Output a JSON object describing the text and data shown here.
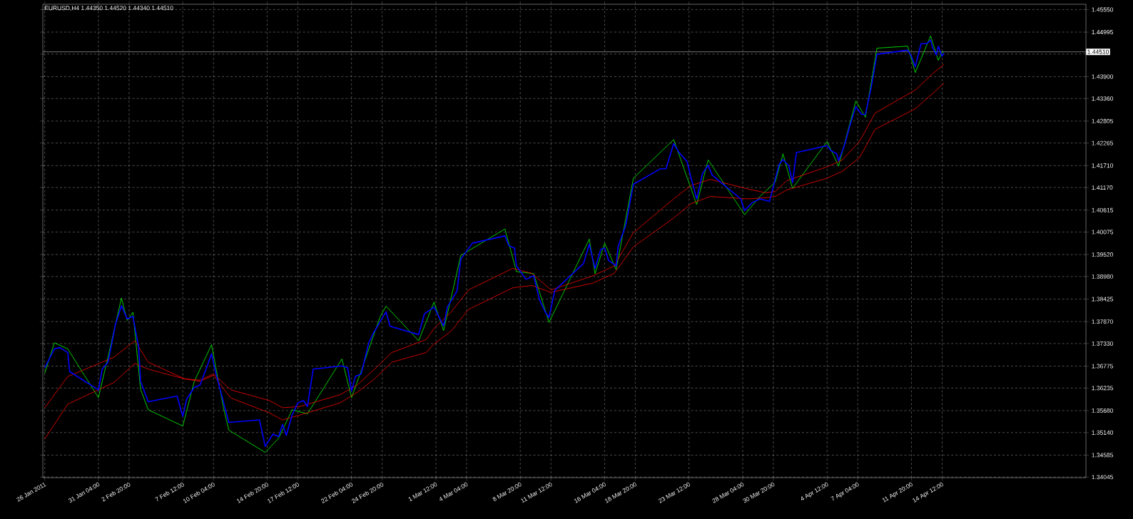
{
  "chart_data": {
    "type": "line",
    "title": "EURUSD,H4  1.44350 1.44520 1.44340 1.44510",
    "xlim": [
      "2011-01-26T08:00",
      "2011-04-27T00:00"
    ],
    "ylim": [
      1.3403,
      1.4568
    ],
    "xticks": [
      {
        "value": "2011-01-26T12:00",
        "label": "26 Jan 2011"
      },
      {
        "value": "2011-01-31T04:00",
        "label": "31 Jan 04:00"
      },
      {
        "value": "2011-02-02T20:00",
        "label": "2 Feb 20:00"
      },
      {
        "value": "2011-02-07T12:00",
        "label": "7 Feb 12:00"
      },
      {
        "value": "2011-02-10T04:00",
        "label": "10 Feb 04:00"
      },
      {
        "value": "2011-02-14T20:00",
        "label": "14 Feb 20:00"
      },
      {
        "value": "2011-02-17T12:00",
        "label": "17 Feb 12:00"
      },
      {
        "value": "2011-02-22T04:00",
        "label": "22 Feb 04:00"
      },
      {
        "value": "2011-02-24T20:00",
        "label": "24 Feb 20:00"
      },
      {
        "value": "2011-03-01T12:00",
        "label": "1 Mar 12:00"
      },
      {
        "value": "2011-03-04T04:00",
        "label": "4 Mar 04:00"
      },
      {
        "value": "2011-03-08T20:00",
        "label": "8 Mar 20:00"
      },
      {
        "value": "2011-03-11T12:00",
        "label": "11 Mar 12:00"
      },
      {
        "value": "2011-03-16T04:00",
        "label": "16 Mar 04:00"
      },
      {
        "value": "2011-03-18T20:00",
        "label": "18 Mar 20:00"
      },
      {
        "value": "2011-03-23T12:00",
        "label": "23 Mar 12:00"
      },
      {
        "value": "2011-03-28T04:00",
        "label": "28 Mar 04:00"
      },
      {
        "value": "2011-03-30T20:00",
        "label": "30 Mar 20:00"
      },
      {
        "value": "2011-04-04T12:00",
        "label": "4 Apr 12:00"
      },
      {
        "value": "2011-04-07T04:00",
        "label": "7 Apr 04:00"
      },
      {
        "value": "2011-04-11T20:00",
        "label": "11 Apr 20:00"
      },
      {
        "value": "2011-04-14T12:00",
        "label": "14 Apr 12:00"
      }
    ],
    "yticks": [
      {
        "value": 1.34045,
        "label": "1.34045"
      },
      {
        "value": 1.34585,
        "label": "1.34585"
      },
      {
        "value": 1.3514,
        "label": "1.35140"
      },
      {
        "value": 1.3568,
        "label": "1.35680"
      },
      {
        "value": 1.36235,
        "label": "1.36235"
      },
      {
        "value": 1.36775,
        "label": "1.36775"
      },
      {
        "value": 1.3733,
        "label": "1.37330"
      },
      {
        "value": 1.3787,
        "label": "1.37870"
      },
      {
        "value": 1.38425,
        "label": "1.38425"
      },
      {
        "value": 1.3898,
        "label": "1.38980"
      },
      {
        "value": 1.3952,
        "label": "1.39520"
      },
      {
        "value": 1.40075,
        "label": "1.40075"
      },
      {
        "value": 1.40615,
        "label": "1.40615"
      },
      {
        "value": 1.4117,
        "label": "1.41170"
      },
      {
        "value": 1.4171,
        "label": "1.41710"
      },
      {
        "value": 1.42265,
        "label": "1.42265"
      },
      {
        "value": 1.42805,
        "label": "1.42805"
      },
      {
        "value": 1.4336,
        "label": "1.43360"
      },
      {
        "value": 1.439,
        "label": "1.43900"
      },
      {
        "value": 1.44455,
        "label": null
      },
      {
        "value": 1.44995,
        "label": "1.44995"
      },
      {
        "value": 1.4555,
        "label": "1.45550"
      }
    ],
    "grid": true,
    "ref_lines": [
      {
        "axis": "y",
        "value": 1.4451,
        "label": "1.44510",
        "color": "#c0c0c0"
      }
    ],
    "series": [
      {
        "color": "#00ff00",
        "x": [
          "2011-01-26T12:00",
          "2011-01-27T08:00",
          "2011-01-28T12:00",
          "2011-01-31T04:00",
          "2011-02-01T00:00",
          "2011-02-02T04:00",
          "2011-02-02T16:00",
          "2011-02-03T04:00",
          "2011-02-03T20:00",
          "2011-02-04T12:00",
          "2011-02-07T12:00",
          "2011-02-08T12:00",
          "2011-02-10T00:00",
          "2011-02-11T00:00",
          "2011-02-11T12:00",
          "2011-02-14T16:00",
          "2011-02-15T20:00",
          "2011-02-17T00:00",
          "2011-02-18T08:00",
          "2011-02-21T08:00",
          "2011-02-22T04:00",
          "2011-02-23T00:00",
          "2011-02-24T16:00",
          "2011-02-25T04:00",
          "2011-02-28T00:00",
          "2011-03-01T08:00",
          "2011-03-02T04:00",
          "2011-03-03T16:00",
          "2011-03-07T12:00",
          "2011-03-08T12:00",
          "2011-03-10T00:00",
          "2011-03-11T08:00",
          "2011-03-14T20:00",
          "2011-03-15T08:00",
          "2011-03-16T04:00",
          "2011-03-17T04:00",
          "2011-03-18T16:00",
          "2011-03-22T04:00",
          "2011-03-24T04:00",
          "2011-03-25T04:00",
          "2011-03-28T08:00",
          "2011-03-29T16:00",
          "2011-03-31T00:00",
          "2011-03-31T16:00",
          "2011-04-01T12:00",
          "2011-04-04T12:00",
          "2011-04-05T12:00",
          "2011-04-07T00:00",
          "2011-04-07T20:00",
          "2011-04-08T20:00",
          "2011-04-11T12:00",
          "2011-04-12T04:00",
          "2011-04-13T12:00",
          "2011-04-14T04:00",
          "2011-04-14T12:00",
          "2011-04-14T16:00"
        ],
        "values": [
          1.366,
          1.3735,
          1.372,
          1.36,
          1.37,
          1.3845,
          1.379,
          1.381,
          1.362,
          1.357,
          1.353,
          1.364,
          1.373,
          1.358,
          1.352,
          1.3465,
          1.35,
          1.357,
          1.356,
          1.3695,
          1.36,
          1.3665,
          1.38,
          1.3825,
          1.374,
          1.3835,
          1.3765,
          1.395,
          1.4015,
          1.391,
          1.3905,
          1.3785,
          1.399,
          1.3905,
          1.398,
          1.3915,
          1.414,
          1.4235,
          1.4075,
          1.4185,
          1.405,
          1.4095,
          1.413,
          1.42,
          1.4115,
          1.423,
          1.417,
          1.433,
          1.429,
          1.446,
          1.4465,
          1.44,
          1.449,
          1.443,
          1.445,
          1.4451
        ]
      },
      {
        "color": "#ff0000",
        "x": [
          "2011-01-26T12:00",
          "2011-01-28T12:00",
          "2011-02-01T12:00",
          "2011-02-03T08:00",
          "2011-02-04T12:00",
          "2011-02-07T16:00",
          "2011-02-09T00:00",
          "2011-02-10T04:00",
          "2011-02-11T16:00",
          "2011-02-15T00:00",
          "2011-02-16T04:00",
          "2011-02-17T16:00",
          "2011-02-21T04:00",
          "2011-02-22T16:00",
          "2011-02-24T04:00",
          "2011-02-25T16:00",
          "2011-02-28T16:00",
          "2011-03-01T08:00",
          "2011-03-02T20:00",
          "2011-03-04T08:00",
          "2011-03-08T04:00",
          "2011-03-09T20:00",
          "2011-03-11T12:00",
          "2011-03-15T04:00",
          "2011-03-17T00:00",
          "2011-03-18T16:00",
          "2011-03-22T04:00",
          "2011-03-23T16:00",
          "2011-03-25T08:00",
          "2011-03-28T16:00",
          "2011-03-30T04:00",
          "2011-03-31T00:00",
          "2011-04-01T00:00",
          "2011-04-04T12:00",
          "2011-04-05T20:00",
          "2011-04-07T08:00",
          "2011-04-08T16:00",
          "2011-04-12T04:00",
          "2011-04-13T16:00",
          "2011-04-14T16:00"
        ],
        "values": [
          1.3575,
          1.3652,
          1.3699,
          1.374,
          1.3687,
          1.3646,
          1.3643,
          1.3658,
          1.3619,
          1.3593,
          1.3575,
          1.3578,
          1.3607,
          1.3631,
          1.367,
          1.3711,
          1.3743,
          1.377,
          1.3811,
          1.3865,
          1.3918,
          1.3906,
          1.3865,
          1.39,
          1.3924,
          1.4006,
          1.4089,
          1.4122,
          1.4137,
          1.4113,
          1.4104,
          1.4107,
          1.4134,
          1.4168,
          1.4185,
          1.4231,
          1.43,
          1.4357,
          1.4397,
          1.442
        ]
      },
      {
        "color": "#ff0000",
        "x": [
          "2011-01-26T12:00",
          "2011-01-28T12:00",
          "2011-02-01T12:00",
          "2011-02-03T08:00",
          "2011-02-04T12:00",
          "2011-02-07T16:00",
          "2011-02-09T00:00",
          "2011-02-10T04:00",
          "2011-02-11T16:00",
          "2011-02-15T00:00",
          "2011-02-16T04:00",
          "2011-02-17T16:00",
          "2011-02-21T04:00",
          "2011-02-22T16:00",
          "2011-02-24T04:00",
          "2011-02-25T16:00",
          "2011-02-28T16:00",
          "2011-03-01T08:00",
          "2011-03-02T20:00",
          "2011-03-04T08:00",
          "2011-03-08T04:00",
          "2011-03-09T20:00",
          "2011-03-11T12:00",
          "2011-03-15T04:00",
          "2011-03-17T00:00",
          "2011-03-18T16:00",
          "2011-03-22T04:00",
          "2011-03-23T16:00",
          "2011-03-25T08:00",
          "2011-03-28T16:00",
          "2011-03-30T04:00",
          "2011-03-31T00:00",
          "2011-04-01T00:00",
          "2011-04-04T12:00",
          "2011-04-05T20:00",
          "2011-04-07T08:00",
          "2011-04-08T16:00",
          "2011-04-12T04:00",
          "2011-04-13T16:00",
          "2011-04-14T16:00"
        ],
        "values": [
          1.3498,
          1.3584,
          1.3637,
          1.3684,
          1.367,
          1.3646,
          1.364,
          1.3655,
          1.3599,
          1.3563,
          1.3545,
          1.3557,
          1.3587,
          1.3613,
          1.3646,
          1.3687,
          1.3711,
          1.3732,
          1.3764,
          1.3817,
          1.387,
          1.3876,
          1.3859,
          1.3882,
          1.3906,
          1.3971,
          1.4042,
          1.4077,
          1.4095,
          1.4089,
          1.4092,
          1.4095,
          1.4111,
          1.414,
          1.4157,
          1.4191,
          1.426,
          1.4311,
          1.4348,
          1.4374
        ]
      },
      {
        "color": "#0000ff",
        "x": [
          "2011-01-26T12:00",
          "2011-01-27T08:00",
          "2011-01-27T20:00",
          "2011-01-28T12:00",
          "2011-01-28T16:00",
          "2011-01-31T04:00",
          "2011-01-31T12:00",
          "2011-02-01T00:00",
          "2011-02-01T16:00",
          "2011-02-02T04:00",
          "2011-02-02T16:00",
          "2011-02-03T04:00",
          "2011-02-03T16:00",
          "2011-02-03T20:00",
          "2011-02-04T12:00",
          "2011-02-07T00:00",
          "2011-02-07T12:00",
          "2011-02-07T20:00",
          "2011-02-08T12:00",
          "2011-02-09T00:00",
          "2011-02-09T16:00",
          "2011-02-10T00:00",
          "2011-02-10T08:00",
          "2011-02-11T00:00",
          "2011-02-11T12:00",
          "2011-02-14T04:00",
          "2011-02-14T16:00",
          "2011-02-15T08:00",
          "2011-02-15T20:00",
          "2011-02-16T04:00",
          "2011-02-16T12:00",
          "2011-02-17T00:00",
          "2011-02-17T12:00",
          "2011-02-18T00:00",
          "2011-02-18T08:00",
          "2011-02-18T20:00",
          "2011-02-21T08:00",
          "2011-02-21T20:00",
          "2011-02-22T04:00",
          "2011-02-22T12:00",
          "2011-02-23T00:00",
          "2011-02-23T16:00",
          "2011-02-24T00:00",
          "2011-02-24T16:00",
          "2011-02-25T04:00",
          "2011-02-25T12:00",
          "2011-02-28T00:00",
          "2011-02-28T12:00",
          "2011-03-01T08:00",
          "2011-03-02T04:00",
          "2011-03-02T12:00",
          "2011-03-03T08:00",
          "2011-03-03T16:00",
          "2011-03-04T16:00",
          "2011-03-07T12:00",
          "2011-03-07T20:00",
          "2011-03-08T08:00",
          "2011-03-08T12:00",
          "2011-03-09T08:00",
          "2011-03-10T00:00",
          "2011-03-10T12:00",
          "2011-03-11T00:00",
          "2011-03-11T08:00",
          "2011-03-11T20:00",
          "2011-03-14T08:00",
          "2011-03-14T20:00",
          "2011-03-15T08:00",
          "2011-03-15T20:00",
          "2011-03-16T04:00",
          "2011-03-16T12:00",
          "2011-03-17T04:00",
          "2011-03-17T08:00",
          "2011-03-18T00:00",
          "2011-03-18T16:00",
          "2011-03-21T00:00",
          "2011-03-21T12:00",
          "2011-03-22T04:00",
          "2011-03-22T16:00",
          "2011-03-23T08:00",
          "2011-03-23T16:00",
          "2011-03-24T04:00",
          "2011-03-24T16:00",
          "2011-03-25T04:00",
          "2011-03-25T12:00",
          "2011-03-28T00:00",
          "2011-03-28T08:00",
          "2011-03-29T00:00",
          "2011-03-29T16:00",
          "2011-03-30T12:00",
          "2011-03-31T08:00",
          "2011-03-31T16:00",
          "2011-04-01T04:00",
          "2011-04-01T12:00",
          "2011-04-01T20:00",
          "2011-04-04T12:00",
          "2011-04-04T20:00",
          "2011-04-05T08:00",
          "2011-04-05T12:00",
          "2011-04-06T00:00",
          "2011-04-06T12:00",
          "2011-04-07T00:00",
          "2011-04-07T12:00",
          "2011-04-07T20:00",
          "2011-04-08T08:00",
          "2011-04-08T20:00",
          "2011-04-11T12:00",
          "2011-04-11T20:00",
          "2011-04-12T04:00",
          "2011-04-12T16:00",
          "2011-04-13T04:00",
          "2011-04-13T12:00",
          "2011-04-13T16:00",
          "2011-04-14T00:00",
          "2011-04-14T04:00",
          "2011-04-14T12:00",
          "2011-04-14T16:00"
        ],
        "values": [
          1.3673,
          1.372,
          1.3723,
          1.3711,
          1.3664,
          1.3619,
          1.367,
          1.3687,
          1.3782,
          1.3826,
          1.3794,
          1.38,
          1.3723,
          1.364,
          1.359,
          1.3604,
          1.3554,
          1.3596,
          1.3625,
          1.3631,
          1.3681,
          1.3708,
          1.3664,
          1.3593,
          1.3539,
          1.3545,
          1.348,
          1.351,
          1.3504,
          1.3534,
          1.3507,
          1.3557,
          1.3587,
          1.3593,
          1.3578,
          1.367,
          1.3678,
          1.3673,
          1.3616,
          1.3652,
          1.3658,
          1.3735,
          1.3755,
          1.3788,
          1.3811,
          1.3776,
          1.3755,
          1.3806,
          1.3823,
          1.3776,
          1.3823,
          1.3862,
          1.3941,
          1.398,
          1.3998,
          1.3974,
          1.3968,
          1.3924,
          1.3891,
          1.39,
          1.3841,
          1.3811,
          1.3797,
          1.3864,
          1.393,
          1.3977,
          1.3918,
          1.3965,
          1.3968,
          1.3938,
          1.3924,
          1.3971,
          1.4024,
          1.4125,
          1.4163,
          1.4163,
          1.4225,
          1.4202,
          1.4181,
          1.4142,
          1.4089,
          1.4151,
          1.4172,
          1.4148,
          1.4089,
          1.406,
          1.408,
          1.4089,
          1.4083,
          1.4174,
          1.4186,
          1.4171,
          1.4129,
          1.4203,
          1.422,
          1.4208,
          1.42,
          1.4183,
          1.422,
          1.4271,
          1.4316,
          1.4297,
          1.4297,
          1.4363,
          1.4445,
          1.4455,
          1.444,
          1.4414,
          1.4471,
          1.4471,
          1.448,
          1.4462,
          1.4443,
          1.4465,
          1.444,
          1.4448
        ]
      }
    ]
  }
}
